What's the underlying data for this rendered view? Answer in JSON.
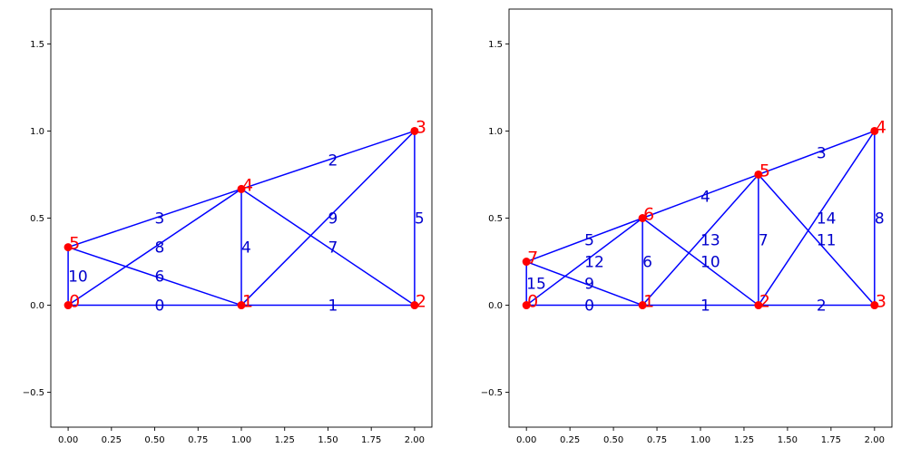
{
  "colors": {
    "edge": "#0000ff",
    "node": "#ff0000",
    "node_label": "#ff0000",
    "elem_label": "#0000cc",
    "axes": "#000000"
  },
  "chart_data": [
    {
      "type": "scatter",
      "title": "",
      "xlabel": "",
      "ylabel": "",
      "xlim": [
        -0.1,
        2.1
      ],
      "ylim": [
        -0.7,
        1.7
      ],
      "xticks": [
        "0.00",
        "0.25",
        "0.50",
        "0.75",
        "1.00",
        "1.25",
        "1.50",
        "1.75",
        "2.00"
      ],
      "yticks": [
        "−0.5",
        "0.0",
        "0.5",
        "1.0",
        "1.5"
      ],
      "grid": false,
      "nodes": [
        {
          "id": "0",
          "x": 0.0,
          "y": 0.0
        },
        {
          "id": "1",
          "x": 1.0,
          "y": 0.0
        },
        {
          "id": "2",
          "x": 2.0,
          "y": 0.0
        },
        {
          "id": "3",
          "x": 2.0,
          "y": 1.0
        },
        {
          "id": "4",
          "x": 1.0,
          "y": 0.667
        },
        {
          "id": "5",
          "x": 0.0,
          "y": 0.333
        }
      ],
      "elements": [
        {
          "id": "0",
          "from": 0,
          "to": 1
        },
        {
          "id": "1",
          "from": 1,
          "to": 2
        },
        {
          "id": "2",
          "from": 4,
          "to": 3
        },
        {
          "id": "3",
          "from": 5,
          "to": 4
        },
        {
          "id": "4",
          "from": 1,
          "to": 4
        },
        {
          "id": "5",
          "from": 2,
          "to": 3
        },
        {
          "id": "6",
          "from": 5,
          "to": 1
        },
        {
          "id": "7",
          "from": 4,
          "to": 2
        },
        {
          "id": "8",
          "from": 0,
          "to": 4
        },
        {
          "id": "9",
          "from": 1,
          "to": 3
        },
        {
          "id": "10",
          "from": 0,
          "to": 5
        }
      ]
    },
    {
      "type": "scatter",
      "title": "",
      "xlabel": "",
      "ylabel": "",
      "xlim": [
        -0.1,
        2.1
      ],
      "ylim": [
        -0.7,
        1.7
      ],
      "xticks": [
        "0.00",
        "0.25",
        "0.50",
        "0.75",
        "1.00",
        "1.25",
        "1.50",
        "1.75",
        "2.00"
      ],
      "yticks": [
        "−0.5",
        "0.0",
        "0.5",
        "1.0",
        "1.5"
      ],
      "grid": false,
      "nodes": [
        {
          "id": "0",
          "x": 0.0,
          "y": 0.0
        },
        {
          "id": "1",
          "x": 0.667,
          "y": 0.0
        },
        {
          "id": "2",
          "x": 1.333,
          "y": 0.0
        },
        {
          "id": "3",
          "x": 2.0,
          "y": 0.0
        },
        {
          "id": "4",
          "x": 2.0,
          "y": 1.0
        },
        {
          "id": "5",
          "x": 1.333,
          "y": 0.75
        },
        {
          "id": "6",
          "x": 0.667,
          "y": 0.5
        },
        {
          "id": "7",
          "x": 0.0,
          "y": 0.25
        }
      ],
      "elements": [
        {
          "id": "0",
          "from": 0,
          "to": 1
        },
        {
          "id": "1",
          "from": 1,
          "to": 2
        },
        {
          "id": "2",
          "from": 2,
          "to": 3
        },
        {
          "id": "3",
          "from": 5,
          "to": 4
        },
        {
          "id": "4",
          "from": 6,
          "to": 5
        },
        {
          "id": "5",
          "from": 7,
          "to": 6
        },
        {
          "id": "6",
          "from": 1,
          "to": 6
        },
        {
          "id": "7",
          "from": 2,
          "to": 5
        },
        {
          "id": "8",
          "from": 3,
          "to": 4
        },
        {
          "id": "9",
          "from": 7,
          "to": 1
        },
        {
          "id": "10",
          "from": 6,
          "to": 2
        },
        {
          "id": "11",
          "from": 5,
          "to": 3
        },
        {
          "id": "12",
          "from": 0,
          "to": 6
        },
        {
          "id": "13",
          "from": 1,
          "to": 5
        },
        {
          "id": "14",
          "from": 2,
          "to": 4
        },
        {
          "id": "15",
          "from": 0,
          "to": 7
        }
      ]
    }
  ]
}
